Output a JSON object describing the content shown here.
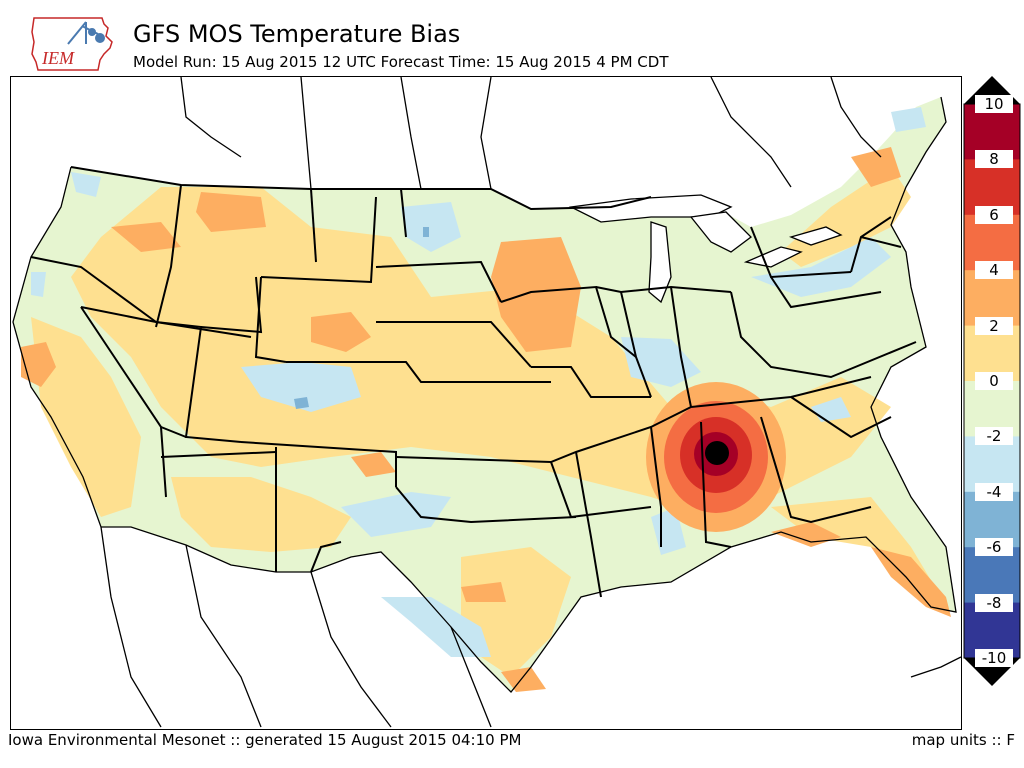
{
  "header": {
    "title": "GFS MOS Temperature Bias",
    "subtitle": "Model Run: 15 Aug 2015 12 UTC Forecast Time: 15 Aug 2015 4 PM CDT",
    "logo_text": "IEM"
  },
  "colorbar": {
    "labels": [
      "10",
      "8",
      "6",
      "4",
      "2",
      "0",
      "-2",
      "-4",
      "-6",
      "-8",
      "-10"
    ],
    "bins": [
      {
        "from": 8,
        "to": 10,
        "color": "#a50026"
      },
      {
        "from": 6,
        "to": 8,
        "color": "#d73027"
      },
      {
        "from": 4,
        "to": 6,
        "color": "#f46d43"
      },
      {
        "from": 2,
        "to": 4,
        "color": "#fdae61"
      },
      {
        "from": 0,
        "to": 2,
        "color": "#fee090"
      },
      {
        "from": -2,
        "to": 0,
        "color": "#e6f5d0"
      },
      {
        "from": -4,
        "to": -2,
        "color": "#c6e6f2"
      },
      {
        "from": -6,
        "to": -4,
        "color": "#7fb3d5"
      },
      {
        "from": -8,
        "to": -6,
        "color": "#4a78b8"
      },
      {
        "from": -10,
        "to": -8,
        "color": "#313695"
      }
    ],
    "over_color": "#000000",
    "under_color": "#000000"
  },
  "map": {
    "land_color": "#e6f5d0",
    "ocean_color": "#ffffff",
    "max_bias_color": "#000000"
  },
  "footer": {
    "left": "Iowa Environmental Mesonet :: generated 15 August 2015 04:10 PM",
    "right": "map units :: F"
  }
}
